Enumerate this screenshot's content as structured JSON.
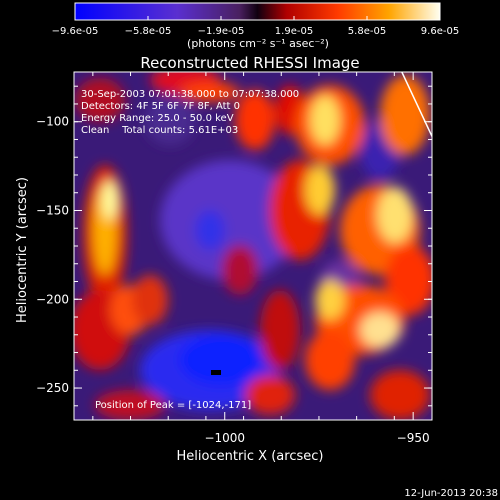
{
  "colorbar": {
    "ticks": [
      "-9.6e-05",
      "-5.8e-05",
      "-1.9e-05",
      "1.9e-05",
      "5.8e-05",
      "9.6e-05"
    ],
    "unit_label": "(photons cm⁻² s⁻¹ asec⁻²)"
  },
  "chart_data": {
    "type": "heatmap",
    "title": "Reconstructed RHESSI Image",
    "xlabel": "Heliocentric X (arcsec)",
    "ylabel": "Heliocentric Y (arcsec)",
    "xlim": [
      -1040,
      -945
    ],
    "ylim": [
      -268,
      -72
    ],
    "xticks": [
      -1000,
      -950,
      -900
    ],
    "yticks": [
      -100,
      -150,
      -200,
      -250
    ],
    "colormap_range": [
      -9.6e-05,
      9.6e-05
    ],
    "annotations": [
      "30-Sep-2003 07:01:38.000 to 07:07:38.000",
      "Detectors: 4F 5F 6F 7F 8F, Att 0",
      "Energy Range: 25.0 - 50.0 keV",
      "Clean    Total counts: 5.61E+03"
    ],
    "peak_label": "Position of Peak = [-1024,-171]",
    "peak_position": [
      -1024,
      -171
    ],
    "limb": {
      "x": [
        -953,
        -938,
        -926,
        -918
      ],
      "y": [
        -72,
        -140,
        -200,
        -268
      ]
    },
    "grid": false
  },
  "footer": {
    "date": "12-Jun-2013 20:38"
  }
}
